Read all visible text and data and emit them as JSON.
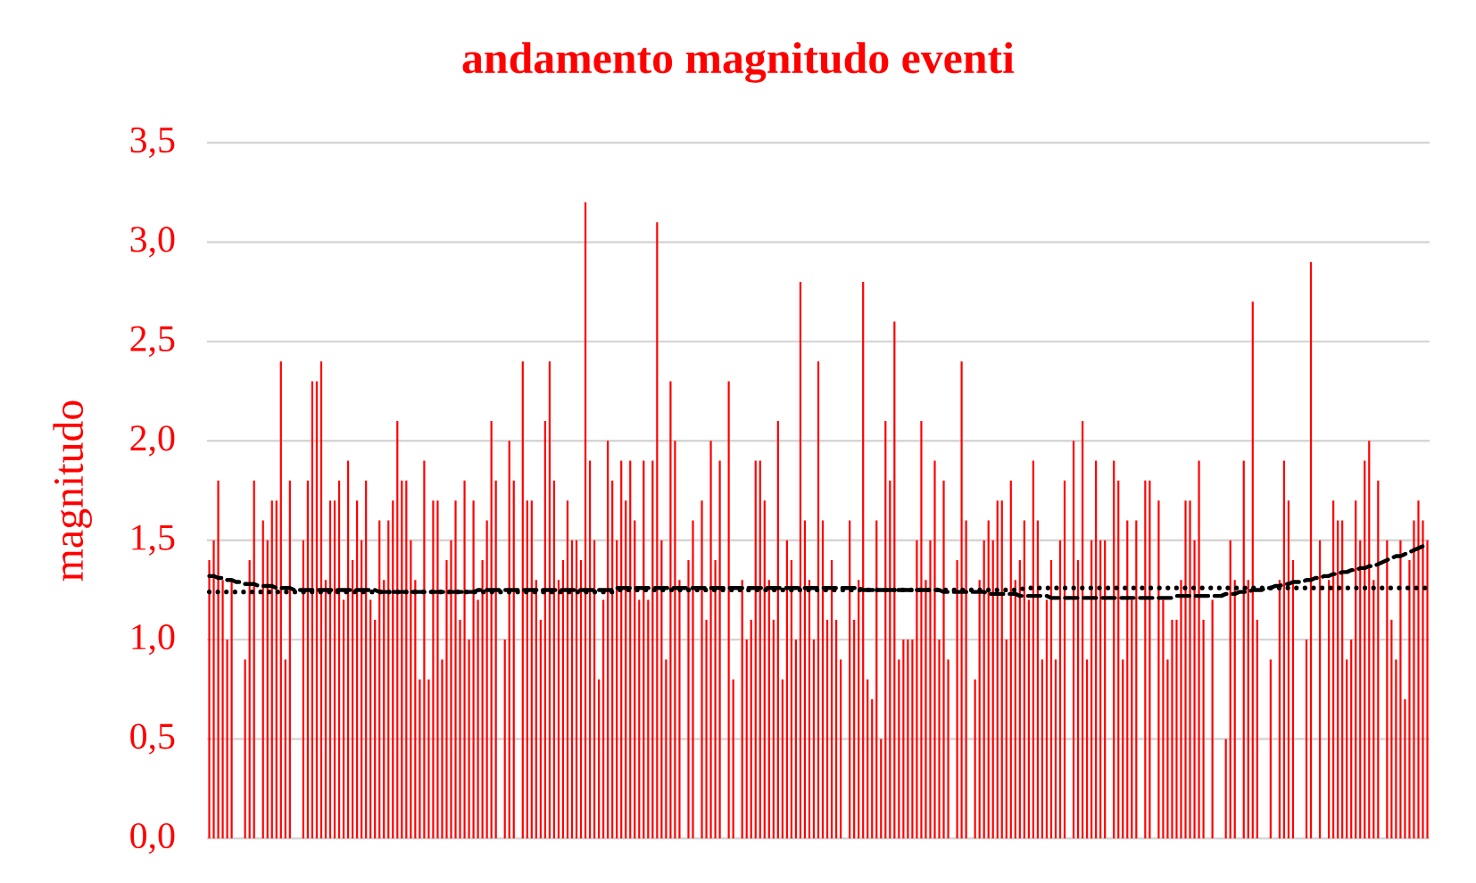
{
  "chart_data": {
    "type": "bar",
    "title": "andamento magnitudo eventi",
    "ylabel": "magnitudo",
    "categories": [
      null,
      null,
      null,
      null,
      null,
      null,
      null,
      null,
      null,
      null,
      null,
      null,
      null,
      null,
      null,
      null,
      null,
      null,
      null,
      null,
      null,
      null,
      null,
      null,
      null,
      null,
      null,
      null,
      null,
      null,
      null,
      null,
      null,
      null,
      null,
      null,
      null,
      null,
      null,
      null,
      null,
      null,
      null,
      null,
      null,
      null,
      null,
      null,
      null,
      null,
      null,
      null,
      null,
      null,
      null,
      null,
      null,
      null,
      null,
      null,
      null,
      null,
      null,
      null,
      null,
      null,
      null,
      null,
      null,
      null,
      null,
      null,
      null,
      null,
      null,
      null,
      null,
      null,
      null,
      null,
      null,
      null,
      null,
      null,
      null,
      null,
      null,
      null,
      null,
      null,
      null,
      null,
      null,
      null,
      null,
      null,
      null,
      null,
      null,
      null,
      null,
      null,
      null,
      null,
      null,
      null,
      null,
      null,
      null,
      null,
      null,
      null,
      null,
      null,
      null,
      null,
      null,
      null,
      null,
      null,
      null,
      null,
      null,
      null,
      null,
      null,
      null,
      null,
      null,
      null,
      null,
      null,
      null,
      null,
      null,
      null,
      null,
      null,
      null,
      null,
      null,
      null,
      null,
      null,
      null,
      null,
      null,
      null,
      null,
      null,
      null,
      null,
      null,
      null,
      null,
      null,
      null,
      null,
      null,
      null,
      null,
      null,
      null,
      null,
      null,
      null,
      null,
      null,
      null,
      null,
      null,
      null,
      null,
      null,
      null,
      null,
      null,
      null,
      null,
      null,
      null,
      null,
      null,
      null,
      null,
      null,
      null,
      null,
      null,
      null,
      null,
      null,
      null,
      null,
      null,
      null,
      null,
      null,
      null,
      null,
      null,
      null,
      null,
      null,
      null,
      null,
      null,
      null,
      null,
      null,
      null,
      null,
      null,
      null,
      null,
      null,
      null,
      null,
      null,
      null,
      null,
      null,
      null,
      null,
      null,
      null,
      null,
      null,
      null,
      null,
      null,
      null,
      null,
      null,
      null,
      null,
      null,
      null,
      null,
      null,
      null,
      null,
      null,
      null,
      null,
      null,
      null,
      null,
      null,
      null,
      null,
      null,
      null,
      null,
      null,
      null,
      null,
      null,
      null,
      null,
      null,
      null,
      null,
      null,
      null,
      null,
      null,
      null,
      null,
      null,
      null,
      null,
      null
    ],
    "series": [
      {
        "color": "#ff0000",
        "values": [
          1.4,
          1.5,
          1.8,
          1.3,
          1.0,
          1.3,
          0,
          0,
          0.9,
          1.4,
          1.8,
          0,
          1.6,
          1.5,
          1.7,
          1.7,
          2.4,
          0.9,
          1.8,
          0,
          0,
          1.5,
          1.8,
          2.3,
          2.3,
          2.4,
          1.3,
          1.7,
          1.7,
          1.8,
          1.2,
          1.9,
          1.4,
          1.7,
          1.5,
          1.8,
          1.2,
          1.1,
          1.6,
          1.3,
          1.6,
          1.7,
          2.1,
          1.8,
          1.8,
          1.5,
          1.3,
          0.8,
          1.9,
          0.8,
          1.7,
          1.7,
          0.9,
          1.4,
          1.5,
          1.7,
          1.1,
          1.8,
          1.0,
          1.7,
          1.2,
          1.4,
          1.6,
          2.1,
          1.8,
          0,
          1.0,
          2.0,
          1.8,
          0,
          2.4,
          1.7,
          1.7,
          1.3,
          1.1,
          2.1,
          2.4,
          1.8,
          1.3,
          1.4,
          1.7,
          1.5,
          1.5,
          1.4,
          3.2,
          1.9,
          1.5,
          0.8,
          1.2,
          2.0,
          1.8,
          1.5,
          1.9,
          1.7,
          1.9,
          1.6,
          1.2,
          1.9,
          1.2,
          1.9,
          3.1,
          1.5,
          0.9,
          2.3,
          2.0,
          1.3,
          0,
          1.4,
          1.6,
          0,
          1.7,
          1.1,
          2.0,
          1.4,
          1.9,
          0,
          2.3,
          0.8,
          0,
          1.3,
          1.0,
          1.1,
          1.9,
          1.9,
          1.7,
          1.3,
          1.1,
          2.1,
          0.8,
          1.5,
          1.4,
          1.0,
          2.8,
          1.6,
          1.3,
          1.0,
          2.4,
          1.6,
          1.1,
          1.4,
          1.1,
          0.9,
          0,
          1.6,
          1.1,
          1.3,
          2.8,
          0.8,
          0.7,
          1.6,
          0.5,
          2.1,
          1.8,
          2.6,
          0.9,
          1.0,
          1.0,
          1.0,
          1.5,
          2.1,
          1.3,
          1.5,
          1.9,
          1.0,
          1.8,
          0.9,
          0,
          1.4,
          2.4,
          1.6,
          0,
          0.8,
          1.3,
          1.5,
          1.6,
          1.5,
          1.7,
          1.7,
          1.0,
          1.8,
          1.3,
          1.4,
          1.6,
          1.2,
          1.9,
          1.6,
          0.9,
          1.2,
          1.4,
          0.9,
          1.5,
          1.8,
          0,
          2.0,
          1.4,
          2.1,
          0.9,
          1.5,
          1.9,
          1.5,
          1.5,
          0,
          1.9,
          1.8,
          0.9,
          1.6,
          1.2,
          1.6,
          0,
          1.8,
          1.8,
          0,
          1.7,
          1.2,
          0.9,
          1.1,
          1.1,
          1.3,
          1.7,
          1.7,
          1.5,
          1.9,
          1.1,
          0,
          1.2,
          0,
          0,
          0.5,
          1.5,
          1.3,
          0,
          1.9,
          1.3,
          2.7,
          1.1,
          0,
          0,
          0.9,
          0,
          1.3,
          1.9,
          1.7,
          1.4,
          0,
          0,
          1.0,
          2.9,
          0,
          1.5,
          0,
          1.3,
          1.7,
          1.6,
          1.6,
          0.9,
          1.0,
          1.7,
          1.5,
          1.9,
          2.0,
          1.3,
          1.8,
          0,
          1.5,
          1.1,
          0.9,
          1.5,
          0.7,
          1.4,
          1.6,
          1.7,
          1.6,
          1.5
        ]
      },
      {
        "type": "line",
        "color": "#000000",
        "line_style": "dashed",
        "values": [
          1.32,
          1.32,
          1.31,
          1.31,
          1.3,
          1.3,
          1.29,
          1.29,
          1.28,
          1.28,
          1.28,
          1.27,
          1.27,
          1.27,
          1.27,
          1.26,
          1.26,
          1.26,
          1.26,
          1.25,
          1.25,
          1.25,
          1.25,
          1.25,
          1.25,
          1.25,
          1.25,
          1.25,
          1.25,
          1.25,
          1.25,
          1.25,
          1.25,
          1.25,
          1.25,
          1.25,
          1.25,
          1.25,
          1.24,
          1.24,
          1.24,
          1.24,
          1.24,
          1.24,
          1.24,
          1.24,
          1.24,
          1.24,
          1.24,
          1.24,
          1.24,
          1.24,
          1.24,
          1.24,
          1.24,
          1.24,
          1.24,
          1.24,
          1.24,
          1.24,
          1.25,
          1.25,
          1.25,
          1.25,
          1.25,
          1.25,
          1.25,
          1.25,
          1.25,
          1.25,
          1.25,
          1.25,
          1.25,
          1.25,
          1.25,
          1.25,
          1.25,
          1.25,
          1.25,
          1.25,
          1.25,
          1.25,
          1.25,
          1.25,
          1.25,
          1.25,
          1.25,
          1.25,
          1.25,
          1.25,
          1.25,
          1.26,
          1.26,
          1.26,
          1.26,
          1.26,
          1.26,
          1.26,
          1.26,
          1.26,
          1.26,
          1.26,
          1.26,
          1.26,
          1.26,
          1.26,
          1.26,
          1.26,
          1.26,
          1.26,
          1.26,
          1.26,
          1.26,
          1.26,
          1.26,
          1.26,
          1.26,
          1.26,
          1.26,
          1.26,
          1.26,
          1.26,
          1.26,
          1.26,
          1.26,
          1.26,
          1.26,
          1.26,
          1.26,
          1.26,
          1.26,
          1.26,
          1.26,
          1.26,
          1.26,
          1.26,
          1.26,
          1.26,
          1.26,
          1.26,
          1.26,
          1.26,
          1.26,
          1.26,
          1.26,
          1.26,
          1.25,
          1.25,
          1.25,
          1.25,
          1.25,
          1.25,
          1.25,
          1.25,
          1.25,
          1.25,
          1.25,
          1.25,
          1.25,
          1.25,
          1.25,
          1.25,
          1.25,
          1.25,
          1.24,
          1.24,
          1.24,
          1.24,
          1.24,
          1.24,
          1.24,
          1.24,
          1.24,
          1.24,
          1.23,
          1.23,
          1.23,
          1.23,
          1.23,
          1.23,
          1.23,
          1.22,
          1.22,
          1.22,
          1.22,
          1.22,
          1.22,
          1.22,
          1.21,
          1.21,
          1.21,
          1.21,
          1.21,
          1.21,
          1.21,
          1.21,
          1.21,
          1.21,
          1.21,
          1.21,
          1.21,
          1.21,
          1.21,
          1.21,
          1.21,
          1.21,
          1.21,
          1.21,
          1.21,
          1.21,
          1.21,
          1.21,
          1.21,
          1.21,
          1.21,
          1.21,
          1.22,
          1.22,
          1.22,
          1.22,
          1.22,
          1.22,
          1.22,
          1.22,
          1.22,
          1.22,
          1.22,
          1.23,
          1.23,
          1.23,
          1.24,
          1.24,
          1.24,
          1.25,
          1.25,
          1.25,
          1.26,
          1.26,
          1.27,
          1.27,
          1.28,
          1.28,
          1.29,
          1.29,
          1.29,
          1.3,
          1.3,
          1.31,
          1.31,
          1.32,
          1.32,
          1.33,
          1.33,
          1.34,
          1.34,
          1.35,
          1.35,
          1.36,
          1.36,
          1.37,
          1.37,
          1.38,
          1.39,
          1.4,
          1.41,
          1.42,
          1.42,
          1.43,
          1.44,
          1.45,
          1.46,
          1.47,
          1.48
        ]
      },
      {
        "type": "line",
        "color": "#000000",
        "line_style": "dotted",
        "values": [
          1.24,
          1.24,
          1.24,
          1.24,
          1.24,
          1.24,
          1.24,
          1.24,
          1.24,
          1.24,
          1.24,
          1.24,
          1.24,
          1.24,
          1.24,
          1.24,
          1.24,
          1.24,
          1.24,
          1.24,
          1.24,
          1.24,
          1.24,
          1.24,
          1.24,
          1.24,
          1.24,
          1.24,
          1.24,
          1.24,
          1.24,
          1.24,
          1.24,
          1.24,
          1.24,
          1.24,
          1.24,
          1.24,
          1.24,
          1.24,
          1.24,
          1.24,
          1.24,
          1.24,
          1.24,
          1.24,
          1.24,
          1.24,
          1.24,
          1.24,
          1.24,
          1.24,
          1.24,
          1.24,
          1.24,
          1.24,
          1.24,
          1.24,
          1.24,
          1.24,
          1.24,
          1.24,
          1.24,
          1.24,
          1.24,
          1.24,
          1.24,
          1.24,
          1.24,
          1.24,
          1.24,
          1.24,
          1.24,
          1.24,
          1.24,
          1.24,
          1.24,
          1.24,
          1.24,
          1.24,
          1.24,
          1.24,
          1.24,
          1.24,
          1.24,
          1.24,
          1.24,
          1.24,
          1.24,
          1.24,
          1.24,
          1.25,
          1.25,
          1.25,
          1.25,
          1.25,
          1.25,
          1.25,
          1.25,
          1.25,
          1.25,
          1.25,
          1.25,
          1.25,
          1.25,
          1.25,
          1.25,
          1.25,
          1.25,
          1.25,
          1.25,
          1.25,
          1.25,
          1.25,
          1.25,
          1.25,
          1.25,
          1.25,
          1.25,
          1.25,
          1.25,
          1.25,
          1.25,
          1.25,
          1.25,
          1.25,
          1.25,
          1.25,
          1.25,
          1.25,
          1.25,
          1.25,
          1.25,
          1.25,
          1.25,
          1.25,
          1.25,
          1.25,
          1.25,
          1.25,
          1.25,
          1.25,
          1.25,
          1.25,
          1.25,
          1.25,
          1.25,
          1.25,
          1.25,
          1.25,
          1.25,
          1.25,
          1.25,
          1.25,
          1.25,
          1.25,
          1.25,
          1.25,
          1.25,
          1.25,
          1.25,
          1.25,
          1.25,
          1.25,
          1.25,
          1.25,
          1.25,
          1.25,
          1.25,
          1.25,
          1.25,
          1.25,
          1.25,
          1.25,
          1.25,
          1.25,
          1.25,
          1.25,
          1.25,
          1.25,
          1.25,
          1.25,
          1.26,
          1.26,
          1.26,
          1.26,
          1.26,
          1.26,
          1.26,
          1.26,
          1.26,
          1.26,
          1.26,
          1.26,
          1.26,
          1.26,
          1.26,
          1.26,
          1.26,
          1.26,
          1.26,
          1.26,
          1.26,
          1.26,
          1.26,
          1.26,
          1.26,
          1.26,
          1.26,
          1.26,
          1.26,
          1.26,
          1.26,
          1.26,
          1.26,
          1.26,
          1.26,
          1.26,
          1.26,
          1.26,
          1.26,
          1.26,
          1.26,
          1.26,
          1.26,
          1.26,
          1.26,
          1.26,
          1.26,
          1.26,
          1.26,
          1.26,
          1.26,
          1.26,
          1.26,
          1.26,
          1.26,
          1.26,
          1.26,
          1.26,
          1.26,
          1.26,
          1.26,
          1.26,
          1.26,
          1.26,
          1.26,
          1.26,
          1.26,
          1.26,
          1.26,
          1.26,
          1.26,
          1.26,
          1.26,
          1.26,
          1.26,
          1.26,
          1.26,
          1.26,
          1.26,
          1.26,
          1.26,
          1.26,
          1.26,
          1.26,
          1.26,
          1.26,
          1.26,
          1.26,
          1.26,
          1.26,
          1.26
        ]
      }
    ],
    "ylim": [
      0,
      3.5
    ],
    "yticks": [
      {
        "value": 0,
        "label": "0,0"
      },
      {
        "value": 0.5,
        "label": "0,5"
      },
      {
        "value": 1,
        "label": "1,0"
      },
      {
        "value": 1.5,
        "label": "1,5"
      },
      {
        "value": 2,
        "label": "2,0"
      },
      {
        "value": 2.5,
        "label": "2,5"
      },
      {
        "value": 3,
        "label": "3,0"
      },
      {
        "value": 3.5,
        "label": "3,5"
      }
    ],
    "grid": "y",
    "legend": false,
    "tick_labels": "y"
  }
}
